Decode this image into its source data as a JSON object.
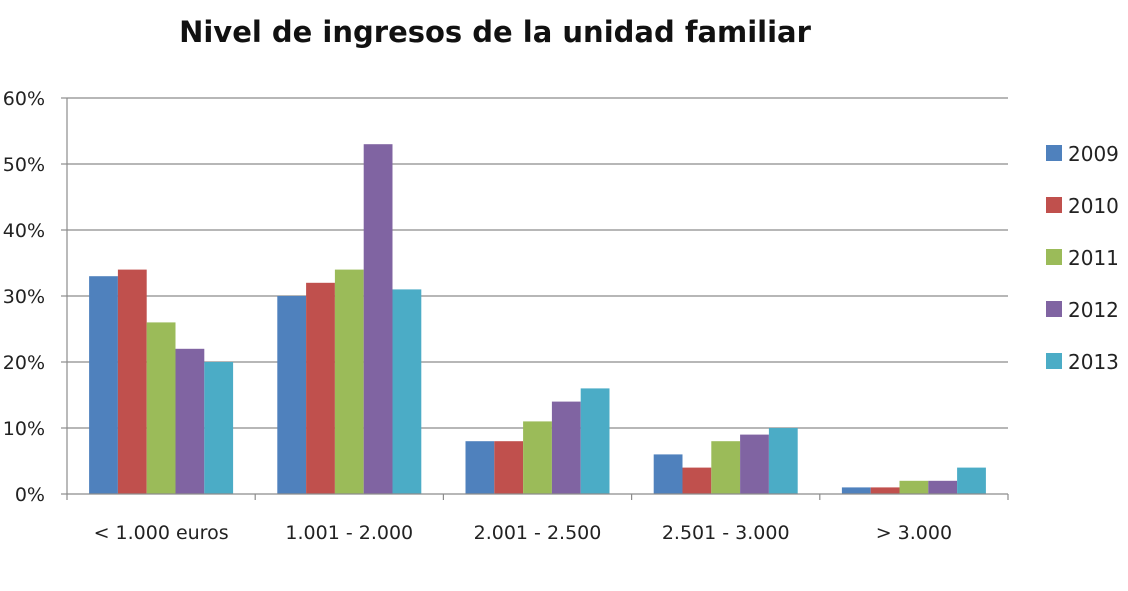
{
  "chart_data": {
    "type": "bar",
    "title": "Nivel de ingresos de la unidad familiar",
    "categories": [
      "< 1.000 euros",
      "1.001 - 2.000",
      "2.001 - 2.500",
      "2.501 - 3.000",
      "> 3.000"
    ],
    "series": [
      {
        "name": "2009",
        "color": "#4F81BD",
        "values": [
          33,
          30,
          8,
          6,
          1
        ]
      },
      {
        "name": "2010",
        "color": "#C0504D",
        "values": [
          34,
          32,
          8,
          4,
          1
        ]
      },
      {
        "name": "2011",
        "color": "#9BBB59",
        "values": [
          26,
          34,
          11,
          8,
          2
        ]
      },
      {
        "name": "2012",
        "color": "#8064A2",
        "values": [
          22,
          53,
          14,
          9,
          2
        ]
      },
      {
        "name": "2013",
        "color": "#4BACC6",
        "values": [
          20,
          31,
          16,
          10,
          4
        ]
      }
    ],
    "yticks": [
      "0%",
      "10%",
      "20%",
      "30%",
      "40%",
      "50%",
      "60%"
    ],
    "ylim": [
      0,
      60
    ],
    "grid": true,
    "legend_position": "right"
  }
}
